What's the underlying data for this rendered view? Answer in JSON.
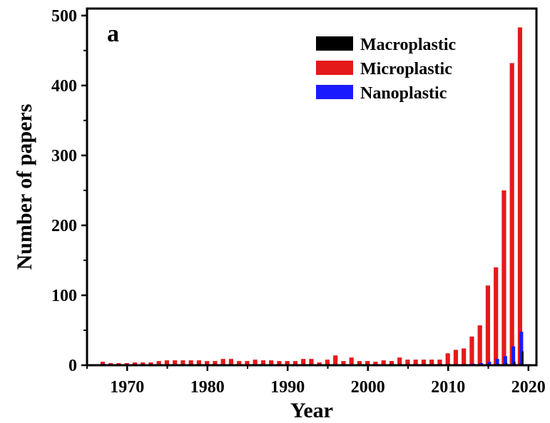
{
  "chart_data": {
    "type": "bar",
    "panel_label": "a",
    "title": "",
    "xlabel": "Year",
    "ylabel": "Number of papers",
    "xlim": [
      1965,
      2021
    ],
    "ylim": [
      0,
      510
    ],
    "xticks": [
      1970,
      1980,
      1990,
      2000,
      2010,
      2020
    ],
    "yticks": [
      0,
      100,
      200,
      300,
      400,
      500
    ],
    "grid": false,
    "legend_position": "top-right",
    "x": [
      1967,
      1968,
      1969,
      1970,
      1971,
      1972,
      1973,
      1974,
      1975,
      1976,
      1977,
      1978,
      1979,
      1980,
      1981,
      1982,
      1983,
      1984,
      1985,
      1986,
      1987,
      1988,
      1989,
      1990,
      1991,
      1992,
      1993,
      1994,
      1995,
      1996,
      1997,
      1998,
      1999,
      2000,
      2001,
      2002,
      2003,
      2004,
      2005,
      2006,
      2007,
      2008,
      2009,
      2010,
      2011,
      2012,
      2013,
      2014,
      2015,
      2016,
      2017,
      2018,
      2019
    ],
    "series": [
      {
        "name": "Macroplastic",
        "color": "#000000",
        "values": [
          0,
          0,
          0,
          0,
          0,
          0,
          0,
          0,
          0,
          0,
          0,
          0,
          0,
          0,
          0,
          0,
          0,
          0,
          0,
          0,
          0,
          0,
          0,
          0,
          0,
          0,
          0,
          0,
          0,
          0,
          0,
          0,
          0,
          0,
          0,
          0,
          0,
          0,
          0,
          0,
          0,
          0,
          0,
          0,
          0,
          0,
          1,
          1,
          1,
          2,
          3,
          5,
          20
        ]
      },
      {
        "name": "Microplastic",
        "color": "#e41a1a",
        "values": [
          5,
          3,
          3,
          3,
          4,
          4,
          4,
          6,
          7,
          7,
          7,
          7,
          7,
          6,
          6,
          9,
          9,
          6,
          6,
          8,
          7,
          7,
          6,
          6,
          6,
          9,
          9,
          4,
          8,
          14,
          6,
          11,
          6,
          6,
          5,
          7,
          6,
          11,
          8,
          8,
          8,
          8,
          8,
          17,
          22,
          24,
          41,
          57,
          114,
          140,
          250,
          432,
          483
        ]
      },
      {
        "name": "Nanoplastic",
        "color": "#1a1aff",
        "values": [
          2,
          1,
          1,
          1,
          1,
          1,
          1,
          1,
          1,
          1,
          1,
          1,
          1,
          1,
          1,
          1,
          1,
          1,
          1,
          1,
          1,
          1,
          1,
          1,
          1,
          1,
          1,
          1,
          1,
          1,
          1,
          1,
          1,
          1,
          1,
          1,
          1,
          1,
          1,
          1,
          1,
          1,
          1,
          1,
          1,
          1,
          2,
          3,
          5,
          9,
          13,
          27,
          48
        ]
      }
    ]
  }
}
